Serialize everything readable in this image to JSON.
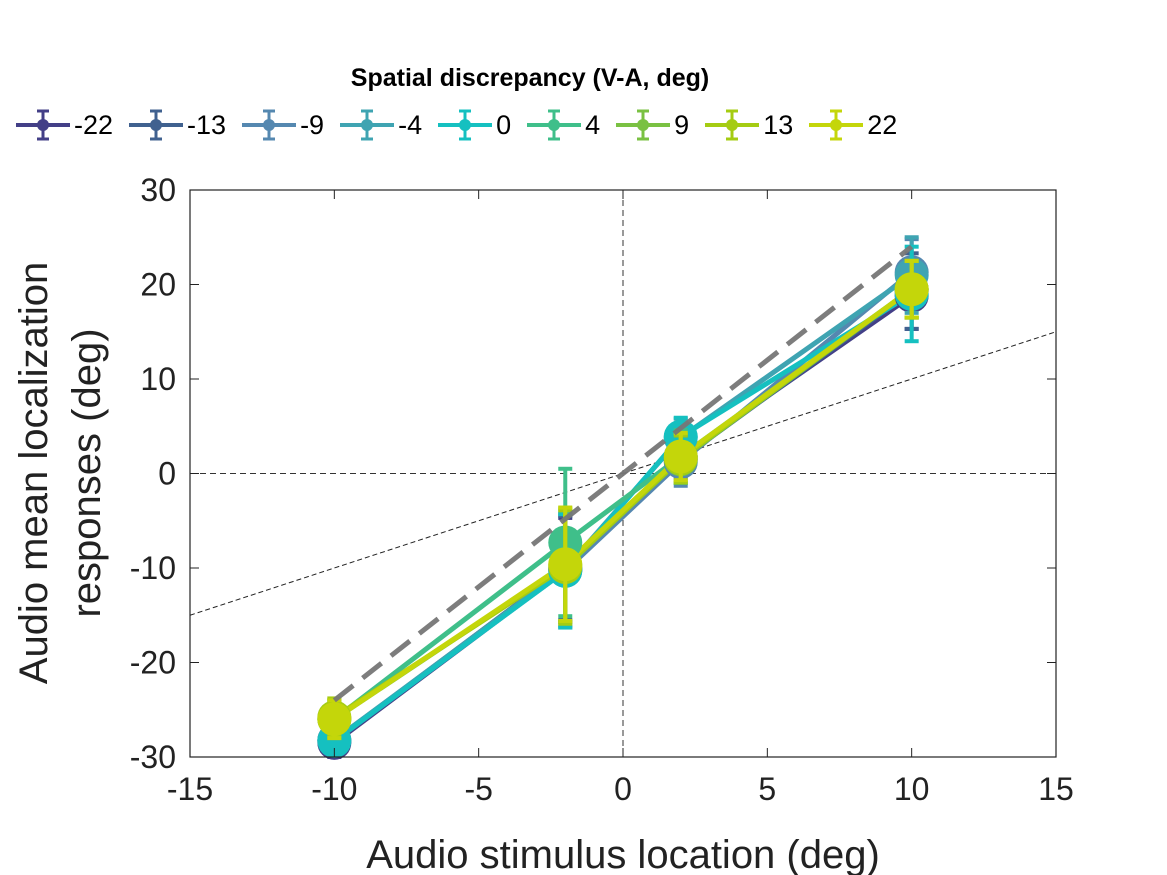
{
  "chart_data": {
    "type": "line",
    "xlabel": "Audio stimulus location (deg)",
    "ylabel": [
      "Audio mean localization",
      "responses (deg)"
    ],
    "xlim": [
      -15,
      15
    ],
    "ylim": [
      -30,
      30
    ],
    "xticks": [
      -15,
      -10,
      -5,
      0,
      5,
      10,
      15
    ],
    "yticks": [
      -30,
      -20,
      -10,
      0,
      10,
      20,
      30
    ],
    "legend_title": "Spatial discrepancy (V-A, deg)",
    "legend_position": "top",
    "x": [
      -10,
      -2,
      2,
      10
    ],
    "reference_lines": [
      {
        "kind": "identity",
        "style": "gray thick dashed",
        "x": [
          -10,
          10
        ],
        "y": [
          -24,
          24
        ]
      },
      {
        "kind": "half-slope",
        "style": "black thin dashed",
        "x": [
          -15,
          15
        ],
        "y": [
          -15,
          15
        ]
      },
      {
        "kind": "x-zero",
        "style": "black thin dashed"
      },
      {
        "kind": "y-zero",
        "style": "black thin dashed"
      }
    ],
    "series": [
      {
        "name": "-22",
        "color": "#433f87",
        "y": [
          -28.5,
          -10.2,
          1.8,
          18.8
        ],
        "err": [
          1.5,
          5.5,
          2.0,
          3.5
        ]
      },
      {
        "name": "-13",
        "color": "#40618f",
        "y": [
          -28.3,
          -10.0,
          1.5,
          19.3
        ],
        "err": [
          1.5,
          5.5,
          2.0,
          4.0
        ]
      },
      {
        "name": "-9",
        "color": "#5588b0",
        "y": [
          -28.2,
          -10.3,
          1.2,
          21.3
        ],
        "err": [
          1.5,
          6.0,
          2.5,
          3.5
        ]
      },
      {
        "name": "-4",
        "color": "#3fa4b2",
        "y": [
          -28.2,
          -10.1,
          3.8,
          21.0
        ],
        "err": [
          1.5,
          6.0,
          2.0,
          4.0
        ]
      },
      {
        "name": "0",
        "color": "#15c0c0",
        "y": [
          -28.3,
          -10.3,
          3.9,
          19.0
        ],
        "err": [
          1.5,
          6.0,
          2.0,
          5.0
        ]
      },
      {
        "name": "4",
        "color": "#3fbf8a",
        "y": [
          -26.0,
          -7.3,
          1.8,
          19.5
        ],
        "err": [
          2.0,
          7.8,
          2.8,
          3.0
        ]
      },
      {
        "name": "9",
        "color": "#7ac142",
        "y": [
          -26.0,
          -9.7,
          1.5,
          19.5
        ],
        "err": [
          2.0,
          6.0,
          2.5,
          3.0
        ]
      },
      {
        "name": "13",
        "color": "#a5cc12",
        "y": [
          -25.8,
          -9.9,
          1.6,
          19.5
        ],
        "err": [
          2.0,
          6.0,
          2.5,
          3.0
        ]
      },
      {
        "name": "22",
        "color": "#c4d60a",
        "y": [
          -26.0,
          -9.6,
          1.8,
          19.5
        ],
        "err": [
          2.0,
          6.0,
          2.5,
          3.0
        ]
      }
    ]
  }
}
